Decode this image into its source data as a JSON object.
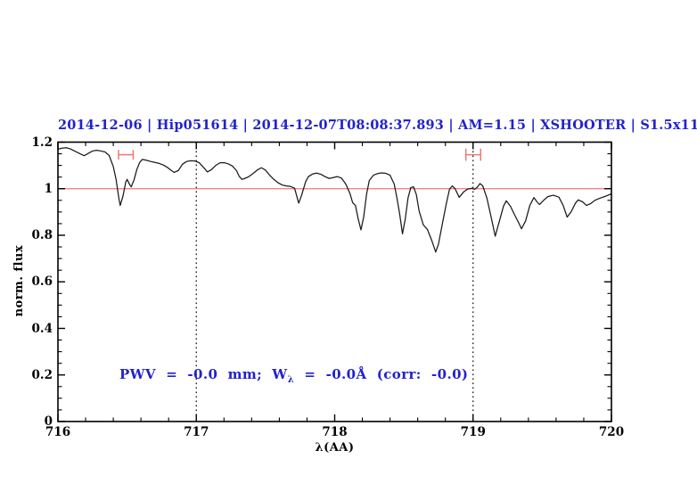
{
  "title": {
    "text": "2014-12-06 | Hip051614 | 2014-12-07T08:08:37.893 | AM=1.15 | XSHOOTER | S1.5x11"
  },
  "annotation": {
    "prefix": "PWV  =  -0.0  mm;  W",
    "subscript": "λ",
    "suffix": "  =  -0.0Å  (corr:  -0.0)"
  },
  "colors": {
    "accent_blue": "#2222cc",
    "line_red": "#ee7777",
    "spectrum_black": "#1a1a1a",
    "frame_black": "#000000"
  },
  "chart_data": {
    "type": "line",
    "title": "2014-12-06 | Hip051614 | 2014-12-07T08:08:37.893 | AM=1.15 | XSHOOTER | S1.5x11",
    "xlabel": "λ(AA)",
    "ylabel": "norm. flux",
    "xlim": [
      716,
      720
    ],
    "ylim": [
      0,
      1.2
    ],
    "xticks": [
      716,
      717,
      718,
      719,
      720
    ],
    "xtick_labels": [
      "716",
      "717",
      "718",
      "719",
      "720"
    ],
    "x_minor_step": 0.2,
    "yticks": [
      0,
      0.2,
      0.4,
      0.6,
      0.8,
      1,
      1.2
    ],
    "ytick_labels": [
      "0",
      "0.2",
      "0.4",
      "0.6",
      "0.8",
      "1",
      "1.2"
    ],
    "y_minor_step": 0.05,
    "grid": "off",
    "legend": "none",
    "reference_line": {
      "y": 1.0
    },
    "vertical_dotted_lines": [
      717,
      719
    ],
    "range_markers": [
      {
        "x_start": 716.438,
        "x_end": 716.544,
        "y": 1.146,
        "cap_half_flux": 0.021
      },
      {
        "x_start": 718.948,
        "x_end": 719.055,
        "y": 1.146,
        "cap_half_flux": 0.026
      }
    ],
    "series": [
      {
        "name": "normalized-spectrum",
        "points": [
          [
            716.0,
            1.17
          ],
          [
            716.03,
            1.174
          ],
          [
            716.06,
            1.176
          ],
          [
            716.09,
            1.171
          ],
          [
            716.12,
            1.162
          ],
          [
            716.16,
            1.15
          ],
          [
            716.19,
            1.142
          ],
          [
            716.22,
            1.152
          ],
          [
            716.25,
            1.162
          ],
          [
            716.28,
            1.165
          ],
          [
            716.31,
            1.162
          ],
          [
            716.34,
            1.158
          ],
          [
            716.37,
            1.143
          ],
          [
            716.4,
            1.095
          ],
          [
            716.42,
            1.04
          ],
          [
            716.44,
            0.96
          ],
          [
            716.45,
            0.928
          ],
          [
            716.47,
            0.968
          ],
          [
            716.49,
            1.028
          ],
          [
            716.5,
            1.04
          ],
          [
            716.52,
            1.016
          ],
          [
            716.53,
            1.008
          ],
          [
            716.55,
            1.038
          ],
          [
            716.57,
            1.082
          ],
          [
            716.59,
            1.112
          ],
          [
            716.61,
            1.126
          ],
          [
            716.64,
            1.122
          ],
          [
            716.67,
            1.117
          ],
          [
            716.7,
            1.113
          ],
          [
            716.73,
            1.109
          ],
          [
            716.76,
            1.102
          ],
          [
            716.79,
            1.092
          ],
          [
            716.82,
            1.078
          ],
          [
            716.84,
            1.07
          ],
          [
            716.87,
            1.078
          ],
          [
            716.9,
            1.105
          ],
          [
            716.93,
            1.117
          ],
          [
            716.96,
            1.12
          ],
          [
            716.99,
            1.119
          ],
          [
            717.02,
            1.112
          ],
          [
            717.05,
            1.093
          ],
          [
            717.08,
            1.072
          ],
          [
            717.11,
            1.082
          ],
          [
            717.14,
            1.1
          ],
          [
            717.17,
            1.111
          ],
          [
            717.2,
            1.112
          ],
          [
            717.23,
            1.107
          ],
          [
            717.26,
            1.098
          ],
          [
            717.29,
            1.078
          ],
          [
            717.31,
            1.053
          ],
          [
            717.33,
            1.04
          ],
          [
            717.35,
            1.044
          ],
          [
            717.38,
            1.052
          ],
          [
            717.41,
            1.065
          ],
          [
            717.44,
            1.08
          ],
          [
            717.47,
            1.09
          ],
          [
            717.5,
            1.08
          ],
          [
            717.53,
            1.058
          ],
          [
            717.56,
            1.04
          ],
          [
            717.59,
            1.026
          ],
          [
            717.62,
            1.016
          ],
          [
            717.65,
            1.012
          ],
          [
            717.68,
            1.01
          ],
          [
            717.71,
            1.002
          ],
          [
            717.74,
            0.938
          ],
          [
            717.76,
            0.97
          ],
          [
            717.79,
            1.03
          ],
          [
            717.81,
            1.052
          ],
          [
            717.84,
            1.063
          ],
          [
            717.87,
            1.067
          ],
          [
            717.9,
            1.062
          ],
          [
            717.93,
            1.052
          ],
          [
            717.96,
            1.044
          ],
          [
            717.99,
            1.048
          ],
          [
            718.02,
            1.052
          ],
          [
            718.05,
            1.045
          ],
          [
            718.08,
            1.02
          ],
          [
            718.11,
            0.98
          ],
          [
            718.13,
            0.94
          ],
          [
            718.15,
            0.928
          ],
          [
            718.17,
            0.87
          ],
          [
            718.19,
            0.823
          ],
          [
            718.21,
            0.88
          ],
          [
            718.23,
            0.975
          ],
          [
            718.25,
            1.035
          ],
          [
            718.28,
            1.058
          ],
          [
            718.31,
            1.065
          ],
          [
            718.34,
            1.068
          ],
          [
            718.37,
            1.066
          ],
          [
            718.4,
            1.058
          ],
          [
            718.43,
            1.02
          ],
          [
            718.45,
            0.96
          ],
          [
            718.47,
            0.89
          ],
          [
            718.49,
            0.806
          ],
          [
            718.51,
            0.87
          ],
          [
            718.53,
            0.96
          ],
          [
            718.55,
            1.005
          ],
          [
            718.57,
            1.008
          ],
          [
            718.59,
            0.975
          ],
          [
            718.61,
            0.905
          ],
          [
            718.64,
            0.845
          ],
          [
            718.67,
            0.825
          ],
          [
            718.7,
            0.78
          ],
          [
            718.73,
            0.728
          ],
          [
            718.75,
            0.762
          ],
          [
            718.78,
            0.855
          ],
          [
            718.81,
            0.945
          ],
          [
            718.83,
            0.998
          ],
          [
            718.85,
            1.012
          ],
          [
            718.87,
            1.0
          ],
          [
            718.9,
            0.963
          ],
          [
            718.93,
            0.985
          ],
          [
            718.96,
            0.998
          ],
          [
            718.99,
            1.002
          ],
          [
            719.01,
            0.997
          ],
          [
            719.03,
            1.006
          ],
          [
            719.05,
            1.022
          ],
          [
            719.07,
            1.012
          ],
          [
            719.1,
            0.96
          ],
          [
            719.13,
            0.88
          ],
          [
            719.16,
            0.796
          ],
          [
            719.19,
            0.86
          ],
          [
            719.22,
            0.925
          ],
          [
            719.24,
            0.948
          ],
          [
            719.27,
            0.925
          ],
          [
            719.3,
            0.888
          ],
          [
            719.33,
            0.853
          ],
          [
            719.35,
            0.828
          ],
          [
            719.38,
            0.862
          ],
          [
            719.41,
            0.928
          ],
          [
            719.44,
            0.962
          ],
          [
            719.46,
            0.945
          ],
          [
            719.48,
            0.932
          ],
          [
            719.51,
            0.95
          ],
          [
            719.54,
            0.966
          ],
          [
            719.58,
            0.972
          ],
          [
            719.62,
            0.964
          ],
          [
            719.65,
            0.93
          ],
          [
            719.68,
            0.878
          ],
          [
            719.71,
            0.902
          ],
          [
            719.74,
            0.938
          ],
          [
            719.76,
            0.952
          ],
          [
            719.79,
            0.944
          ],
          [
            719.82,
            0.928
          ],
          [
            719.85,
            0.936
          ],
          [
            719.88,
            0.95
          ],
          [
            719.92,
            0.96
          ],
          [
            719.96,
            0.968
          ],
          [
            720.0,
            0.978
          ]
        ]
      }
    ]
  }
}
